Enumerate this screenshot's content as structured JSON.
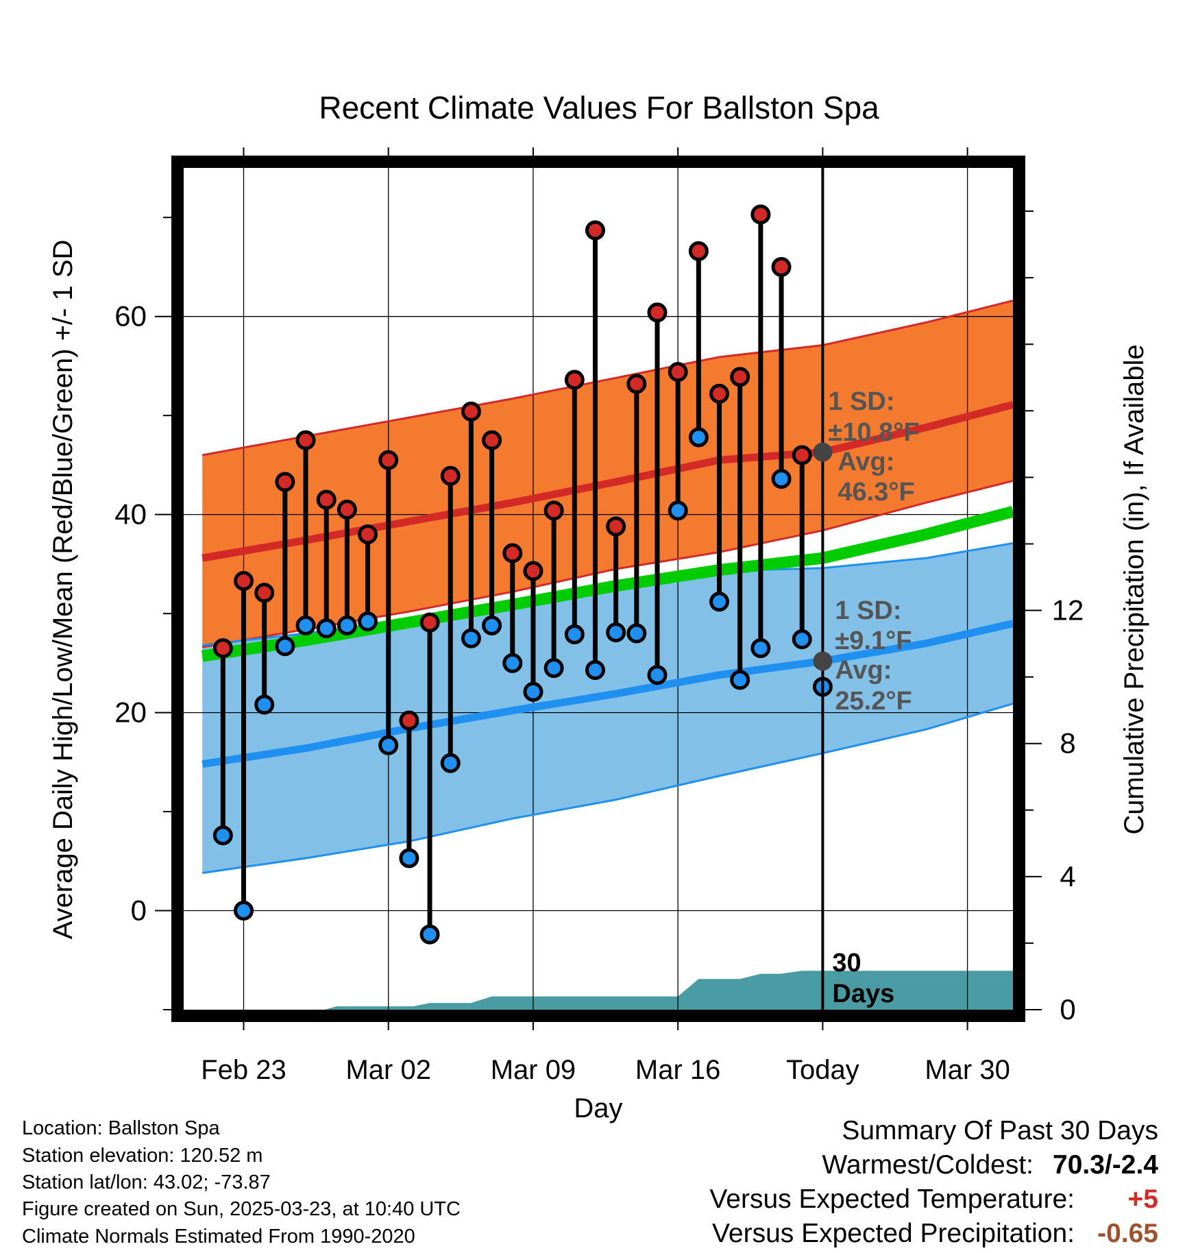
{
  "title": "Recent Climate Values For Ballston Spa",
  "chart_data": {
    "type": "line",
    "title": "Recent Climate Values For Ballston Spa",
    "xlabel": "Day",
    "ylabel": "Average Daily High/Low/Mean (Red/Blue/Green) +/- 1 SD",
    "y2label": "Cumulative Precipitation (in), If Available",
    "x_tick_labels": [
      "Feb 23",
      "Mar 02",
      "Mar 09",
      "Mar 16",
      "Today",
      "Mar 30"
    ],
    "x_tick_days": [
      2,
      9,
      16,
      23,
      30,
      37
    ],
    "x_range": [
      -0.9,
      39.2
    ],
    "ylim": [
      -10,
      75
    ],
    "y_ticks": [
      0,
      20,
      40,
      60
    ],
    "y2lim": [
      0,
      25.3
    ],
    "y2_ticks": [
      0,
      4,
      8,
      12
    ],
    "grid": true,
    "today_day": 30,
    "series": [
      {
        "name": "Observed High",
        "color": "#d42a27",
        "days": [
          1,
          2,
          3,
          4,
          5,
          6,
          7,
          8,
          9,
          10,
          11,
          12,
          13,
          14,
          15,
          16,
          17,
          18,
          19,
          20,
          21,
          22,
          23,
          24,
          25,
          26,
          27,
          28,
          29
        ],
        "values": [
          26.5,
          33.3,
          32.1,
          43.3,
          47.5,
          41.5,
          40.5,
          38.0,
          45.5,
          19.2,
          29.1,
          43.9,
          50.4,
          47.5,
          36.1,
          34.3,
          40.4,
          53.6,
          68.7,
          38.8,
          53.2,
          60.4,
          54.4,
          66.6,
          52.2,
          53.9,
          70.3,
          65.0,
          46.0
        ]
      },
      {
        "name": "Observed Low",
        "color": "#1f8ff0",
        "days": [
          1,
          2,
          3,
          4,
          5,
          6,
          7,
          8,
          9,
          10,
          11,
          12,
          13,
          14,
          15,
          16,
          17,
          18,
          19,
          20,
          21,
          22,
          23,
          24,
          25,
          26,
          27,
          28,
          29,
          30
        ],
        "values": [
          7.6,
          0.0,
          20.8,
          26.7,
          28.8,
          28.5,
          28.8,
          29.2,
          16.7,
          5.3,
          -2.4,
          14.9,
          27.5,
          28.8,
          25.0,
          22.1,
          24.5,
          27.9,
          24.3,
          28.1,
          28.0,
          23.8,
          40.4,
          47.8,
          31.2,
          23.3,
          26.5,
          43.6,
          27.4,
          22.6
        ]
      },
      {
        "name": "Normal High",
        "color": "#d42a27",
        "days": [
          0,
          5,
          10,
          15,
          20,
          25,
          30,
          35,
          39.2
        ],
        "values": [
          35.6,
          37.4,
          39.3,
          41.2,
          43.3,
          45.5,
          46.3,
          48.8,
          51.1
        ]
      },
      {
        "name": "Normal High +1 SD",
        "color": "#d42a27",
        "days": [
          0,
          5,
          10,
          15,
          20,
          25,
          30,
          35,
          39.2
        ],
        "values": [
          46.0,
          47.9,
          49.8,
          51.7,
          53.8,
          55.9,
          57.1,
          59.4,
          61.6
        ]
      },
      {
        "name": "Normal High -1 SD",
        "color": "#d42a27",
        "days": [
          0,
          5,
          10,
          15,
          20,
          25,
          30,
          35,
          39.2
        ],
        "values": [
          26.6,
          28.4,
          30.2,
          32.2,
          34.5,
          36.2,
          38.4,
          41.2,
          43.4
        ]
      },
      {
        "name": "Normal Mean",
        "color": "#00cc00",
        "days": [
          0,
          5,
          10,
          15,
          20,
          25,
          30,
          35,
          39.2
        ],
        "values": [
          25.7,
          27.3,
          29.1,
          30.9,
          32.8,
          34.4,
          35.6,
          38.0,
          40.3
        ]
      },
      {
        "name": "Normal Low",
        "color": "#1f8ff0",
        "days": [
          0,
          5,
          10,
          15,
          20,
          25,
          30,
          35,
          39.2
        ],
        "values": [
          14.8,
          16.4,
          18.4,
          20.2,
          21.9,
          23.8,
          25.2,
          27.0,
          29.0
        ]
      },
      {
        "name": "Normal Low +1 SD",
        "color": "#1f8ff0",
        "days": [
          0,
          5,
          10,
          15,
          20,
          25,
          30,
          35,
          39.2
        ],
        "values": [
          26.8,
          28.0,
          29.3,
          30.7,
          32.6,
          34.3,
          34.6,
          35.6,
          37.1
        ]
      },
      {
        "name": "Normal Low -1 SD",
        "color": "#1f8ff0",
        "days": [
          0,
          5,
          10,
          15,
          20,
          25,
          30,
          35,
          39.2
        ],
        "values": [
          3.8,
          5.3,
          7.0,
          9.3,
          11.2,
          13.6,
          15.9,
          18.3,
          20.9
        ]
      },
      {
        "name": "Cumulative Precipitation",
        "color": "#4a9ca4",
        "axis": "y2",
        "days": [
          -0.9,
          5.9,
          6.5,
          10.2,
          11.0,
          13.0,
          14.0,
          19.0,
          22.0,
          23.0,
          24.0,
          26.0,
          27.0,
          28.0,
          29.0,
          39.2
        ],
        "values": [
          0.0,
          0.0,
          0.1,
          0.1,
          0.2,
          0.2,
          0.4,
          0.4,
          0.4,
          0.4,
          0.92,
          0.92,
          1.08,
          1.08,
          1.17,
          1.17
        ]
      }
    ],
    "annotations": {
      "high_sd_line1": "1 SD:",
      "high_sd_line2": "±10.8°F",
      "high_avg_line1": "Avg:",
      "high_avg_line2": "46.3°F",
      "low_sd_line1": "1 SD:",
      "low_sd_line2": "±9.1°F",
      "low_avg_line1": "Avg:",
      "low_avg_line2": "25.2°F",
      "precip_line1": "30",
      "precip_line2": "Days"
    }
  },
  "info": {
    "location": "Location: Ballston Spa",
    "elevation": "Station elevation: 120.52 m",
    "latlon": "Station lat/lon: 43.02; -73.87",
    "created": "Figure created on Sun, 2025-03-23, at 10:40 UTC",
    "normals": "Climate Normals Estimated From 1990-2020"
  },
  "summary": {
    "heading": "Summary Of Past 30 Days",
    "warmest_label": "Warmest/Coldest:",
    "warmest_value": "70.3/-2.4",
    "temp_label": "Versus Expected Temperature:",
    "temp_value": "+5",
    "temp_color": "#d42a27",
    "precip_label": "Versus Expected Precipitation:",
    "precip_value": "-0.65",
    "precip_color": "#a0522d"
  }
}
